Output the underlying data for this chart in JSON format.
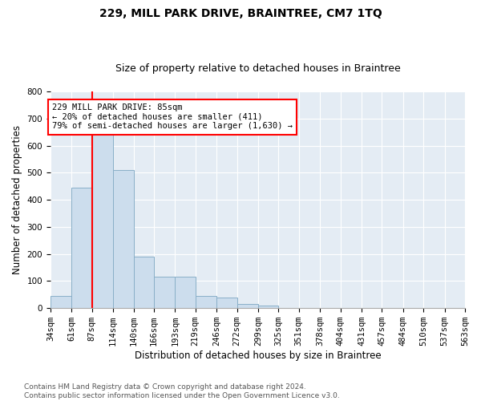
{
  "title": "229, MILL PARK DRIVE, BRAINTREE, CM7 1TQ",
  "subtitle": "Size of property relative to detached houses in Braintree",
  "xlabel": "Distribution of detached houses by size in Braintree",
  "ylabel": "Number of detached properties",
  "bar_color": "#ccdded",
  "bar_edge_color": "#89afc8",
  "bg_color": "#e4ecf4",
  "grid_color": "#ffffff",
  "red_line_x": 87,
  "annotation_text": "229 MILL PARK DRIVE: 85sqm\n← 20% of detached houses are smaller (411)\n79% of semi-detached houses are larger (1,630) →",
  "bins": [
    34,
    61,
    87,
    114,
    140,
    166,
    193,
    219,
    246,
    272,
    299,
    325,
    351,
    378,
    404,
    431,
    457,
    484,
    510,
    537,
    563
  ],
  "counts": [
    45,
    445,
    660,
    510,
    190,
    115,
    115,
    45,
    40,
    15,
    10,
    0,
    0,
    0,
    0,
    0,
    0,
    0,
    0,
    0
  ],
  "ylim": [
    0,
    800
  ],
  "yticks": [
    0,
    100,
    200,
    300,
    400,
    500,
    600,
    700,
    800
  ],
  "footer": "Contains HM Land Registry data © Crown copyright and database right 2024.\nContains public sector information licensed under the Open Government Licence v3.0.",
  "title_fontsize": 10,
  "subtitle_fontsize": 9,
  "label_fontsize": 8.5,
  "tick_fontsize": 7.5,
  "footer_fontsize": 6.5,
  "annotation_fontsize": 7.5
}
